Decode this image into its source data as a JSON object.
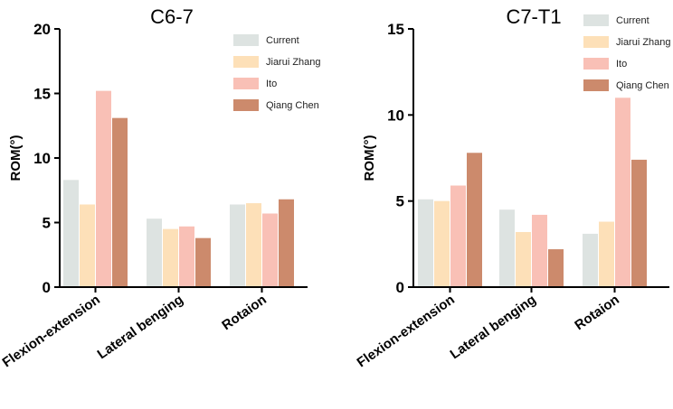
{
  "chart_data": [
    {
      "type": "bar",
      "title": "C6-7",
      "categories": [
        "Flexion-extension",
        "Lateral benging",
        "Rotaion"
      ],
      "ylabel": "ROM(°)",
      "xlabel": "",
      "ylim": [
        0,
        20
      ],
      "yticks": [
        0,
        5,
        10,
        15,
        20
      ],
      "legend_position": "top-right",
      "grid": false,
      "series": [
        {
          "name": "Current",
          "color": "#dde3e1",
          "values": [
            8.3,
            5.3,
            6.4
          ]
        },
        {
          "name": "Jiarui Zhang",
          "color": "#fde0b8",
          "values": [
            6.4,
            4.5,
            6.5
          ]
        },
        {
          "name": "Ito",
          "color": "#f9c0b6",
          "values": [
            15.2,
            4.7,
            5.7
          ]
        },
        {
          "name": "Qiang Chen",
          "color": "#cc8a6c",
          "values": [
            13.1,
            3.8,
            6.8
          ]
        }
      ]
    },
    {
      "type": "bar",
      "title": "C7-T1",
      "categories": [
        "Flexion-extension",
        "Lateral benging",
        "Rotaion"
      ],
      "ylabel": "ROM(°)",
      "xlabel": "",
      "ylim": [
        0,
        15
      ],
      "yticks": [
        0,
        5,
        10,
        15
      ],
      "legend_position": "top-right",
      "grid": false,
      "series": [
        {
          "name": "Current",
          "color": "#dde3e1",
          "values": [
            5.1,
            4.5,
            3.1
          ]
        },
        {
          "name": "Jiarui Zhang",
          "color": "#fde0b8",
          "values": [
            5.0,
            3.2,
            3.8
          ]
        },
        {
          "name": "Ito",
          "color": "#f9c0b6",
          "values": [
            5.9,
            4.2,
            11.0
          ]
        },
        {
          "name": "Qiang Chen",
          "color": "#cc8a6c",
          "values": [
            7.8,
            2.2,
            7.4
          ]
        }
      ]
    }
  ]
}
